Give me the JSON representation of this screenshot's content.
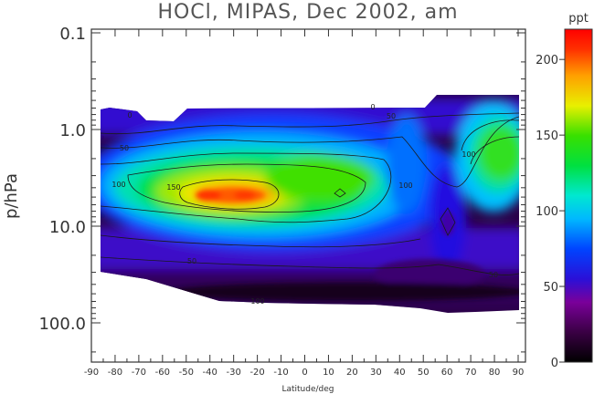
{
  "chart_data": {
    "type": "heatmap",
    "title": "HOCl, MIPAS, Dec 2002, am",
    "xlabel": "Latitude/deg",
    "ylabel": "p/hPa",
    "xlim": [
      -90,
      90
    ],
    "ylim": [
      0.1,
      300
    ],
    "y_scale": "log",
    "x_ticks": [
      "-90",
      "-80",
      "-70",
      "-60",
      "-50",
      "-40",
      "-30",
      "-20",
      "-10",
      "0",
      "10",
      "20",
      "30",
      "40",
      "50",
      "60",
      "70",
      "80",
      "90"
    ],
    "y_ticks": [
      "0.1",
      "1.0",
      "10.0",
      "100.0"
    ],
    "colorbar": {
      "unit": "ppt",
      "range": [
        0,
        220
      ],
      "ticks": [
        "0",
        "50",
        "100",
        "150",
        "200"
      ]
    },
    "contour_labels": [
      "0",
      "50",
      "100",
      "150",
      "50",
      "100",
      "100",
      "50",
      "0",
      "50",
      "100"
    ],
    "hotspots": [
      {
        "lat": -35,
        "p_hpa": 5.5,
        "ppt": 215
      },
      {
        "lat": 80,
        "p_hpa": 3.0,
        "ppt": 150
      },
      {
        "lat": 57,
        "p_hpa": 11.0,
        "ppt": 55
      }
    ]
  }
}
